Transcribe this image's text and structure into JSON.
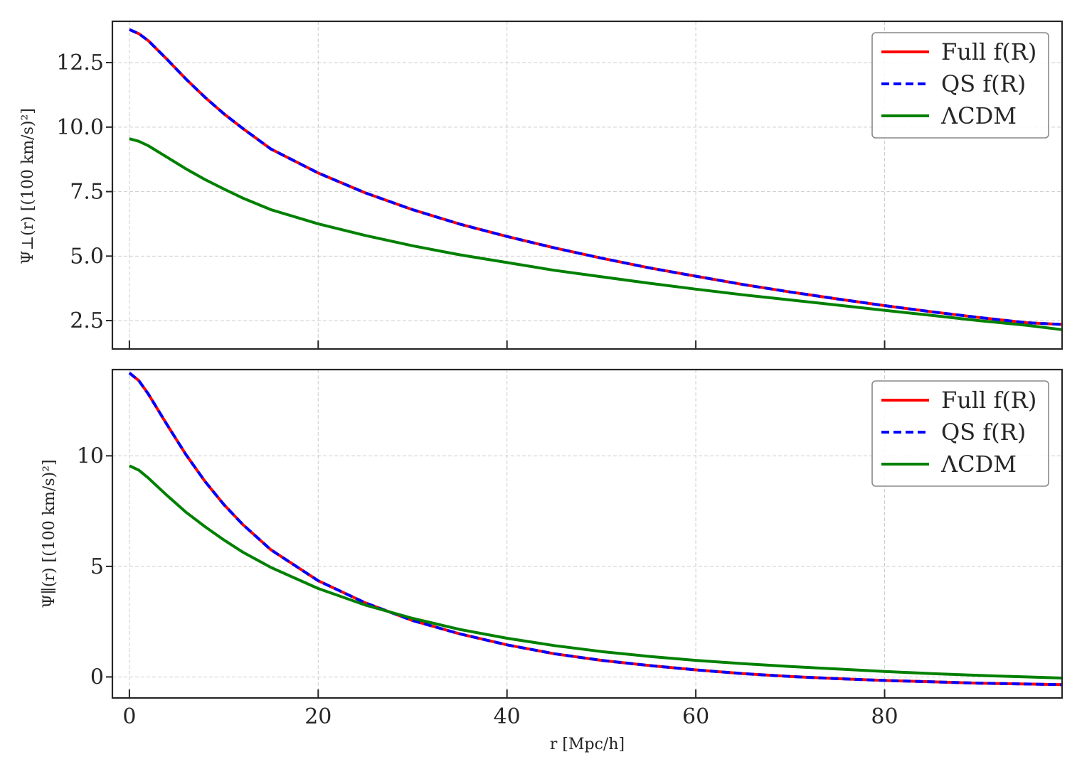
{
  "chart_data": [
    {
      "type": "line",
      "panel": "top",
      "ylabel": "Ψ⊥(r) [(100 km/s)²]",
      "xlim": [
        -1.8,
        98.8
      ],
      "ylim": [
        1.4,
        14.1
      ],
      "xticks": [
        0,
        20,
        40,
        60,
        80
      ],
      "xticklabels": [
        "",
        "",
        "",
        "",
        ""
      ],
      "yticks": [
        2.5,
        5.0,
        7.5,
        10.0,
        12.5
      ],
      "yticklabels": [
        "2.5",
        "5.0",
        "7.5",
        "10.0",
        "12.5"
      ],
      "grid": true,
      "legend": "top-right",
      "x": [
        0,
        1,
        2,
        4,
        6,
        8,
        10,
        12,
        15,
        20,
        25,
        30,
        35,
        40,
        45,
        50,
        55,
        60,
        65,
        70,
        75,
        80,
        85,
        90,
        95,
        98.8
      ],
      "series": [
        {
          "name": "Full f(R)",
          "color": "#ff0000",
          "style": "solid",
          "values": [
            13.78,
            13.62,
            13.35,
            12.62,
            11.86,
            11.16,
            10.52,
            9.95,
            9.15,
            8.22,
            7.45,
            6.8,
            6.24,
            5.76,
            5.32,
            4.92,
            4.55,
            4.22,
            3.9,
            3.61,
            3.34,
            3.08,
            2.84,
            2.62,
            2.42,
            2.35
          ]
        },
        {
          "name": "QS f(R)",
          "color": "#0000ff",
          "style": "dashed",
          "values": [
            13.78,
            13.62,
            13.35,
            12.62,
            11.86,
            11.16,
            10.52,
            9.95,
            9.15,
            8.22,
            7.45,
            6.8,
            6.24,
            5.76,
            5.32,
            4.92,
            4.55,
            4.22,
            3.9,
            3.61,
            3.34,
            3.08,
            2.84,
            2.62,
            2.42,
            2.35
          ]
        },
        {
          "name": "ΛCDM",
          "color": "#008000",
          "style": "solid",
          "values": [
            9.55,
            9.45,
            9.28,
            8.83,
            8.38,
            7.97,
            7.6,
            7.25,
            6.8,
            6.25,
            5.8,
            5.4,
            5.05,
            4.75,
            4.45,
            4.2,
            3.95,
            3.72,
            3.5,
            3.3,
            3.1,
            2.9,
            2.7,
            2.5,
            2.32,
            2.15
          ]
        }
      ]
    },
    {
      "type": "line",
      "panel": "bottom",
      "xlabel": "r [Mpc/h]",
      "ylabel": "Ψ∥(r) [(100 km/s)²]",
      "xlim": [
        -1.8,
        98.8
      ],
      "ylim": [
        -0.95,
        13.9
      ],
      "xticks": [
        0,
        20,
        40,
        60,
        80
      ],
      "xticklabels": [
        "0",
        "20",
        "40",
        "60",
        "80"
      ],
      "yticks": [
        0,
        5,
        10
      ],
      "yticklabels": [
        "0",
        "5",
        "10"
      ],
      "grid": true,
      "legend": "top-right",
      "x": [
        0,
        1,
        2,
        4,
        6,
        8,
        10,
        12,
        15,
        20,
        25,
        30,
        35,
        40,
        45,
        50,
        55,
        60,
        65,
        70,
        75,
        80,
        85,
        90,
        95,
        98.8
      ],
      "series": [
        {
          "name": "Full f(R)",
          "color": "#ff0000",
          "style": "solid",
          "values": [
            13.75,
            13.4,
            12.8,
            11.4,
            10.05,
            8.85,
            7.8,
            6.9,
            5.75,
            4.35,
            3.35,
            2.55,
            1.95,
            1.45,
            1.05,
            0.75,
            0.52,
            0.32,
            0.15,
            0.02,
            -0.08,
            -0.16,
            -0.22,
            -0.28,
            -0.32,
            -0.35
          ]
        },
        {
          "name": "QS f(R)",
          "color": "#0000ff",
          "style": "dashed",
          "values": [
            13.75,
            13.4,
            12.8,
            11.4,
            10.05,
            8.85,
            7.8,
            6.9,
            5.75,
            4.35,
            3.35,
            2.55,
            1.95,
            1.45,
            1.05,
            0.75,
            0.52,
            0.32,
            0.15,
            0.02,
            -0.08,
            -0.16,
            -0.22,
            -0.28,
            -0.32,
            -0.35
          ]
        },
        {
          "name": "ΛCDM",
          "color": "#008000",
          "style": "solid",
          "values": [
            9.55,
            9.35,
            9.0,
            8.2,
            7.45,
            6.8,
            6.2,
            5.65,
            4.95,
            4.0,
            3.25,
            2.65,
            2.15,
            1.75,
            1.42,
            1.15,
            0.93,
            0.75,
            0.6,
            0.47,
            0.36,
            0.25,
            0.15,
            0.07,
            0.0,
            -0.05
          ]
        }
      ]
    }
  ]
}
